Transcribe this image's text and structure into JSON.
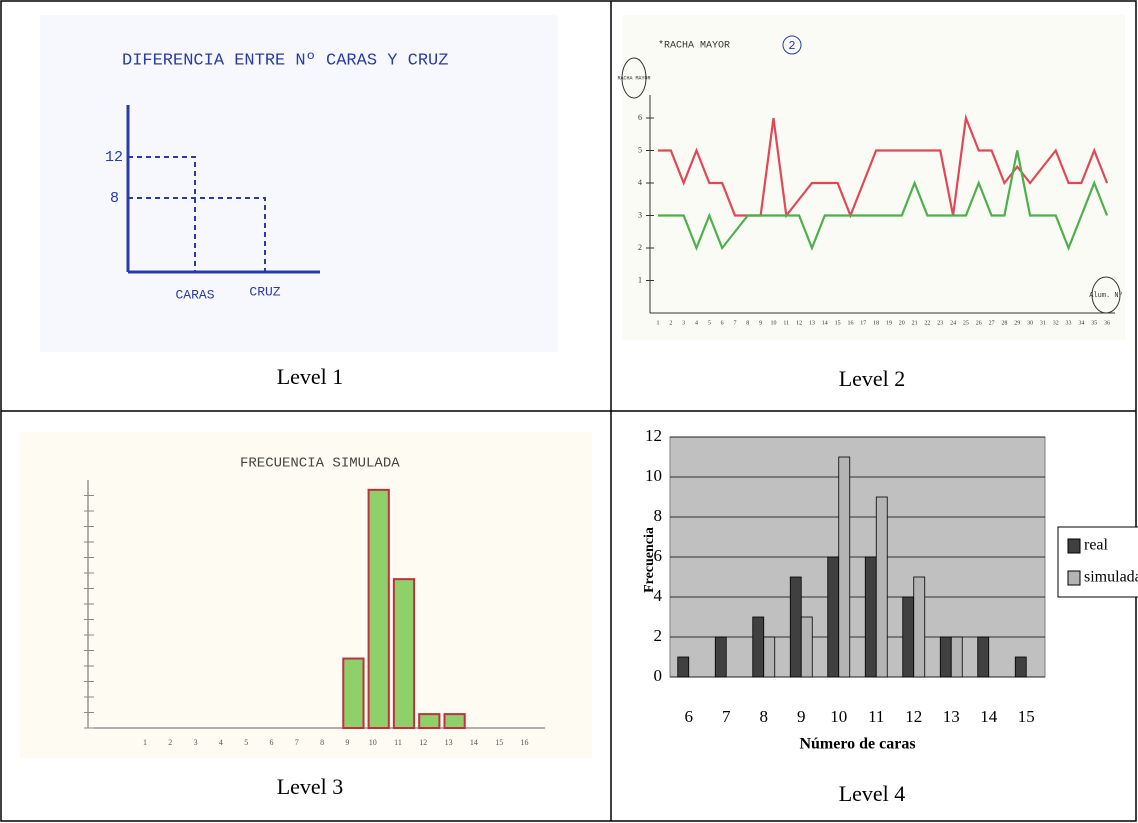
{
  "labels": [
    "Level 1",
    "Level 2",
    "Level 3",
    "Level 4"
  ],
  "sketch1": {
    "title": "DIFERENCIA ENTRE Nº CARAS Y CRUZ",
    "y_labels": [
      "12",
      "8"
    ],
    "x_labels": [
      "CARAS",
      "CRUZ"
    ]
  },
  "sketch2": {
    "type": "line",
    "title": "*RACHA MAYOR",
    "mark": "2",
    "y_label": "RACHA MAYOR",
    "x_label": "Alum. Nº",
    "x": [
      1,
      2,
      3,
      4,
      5,
      6,
      7,
      8,
      9,
      10,
      11,
      12,
      13,
      14,
      15,
      16,
      17,
      18,
      19,
      20,
      21,
      22,
      23,
      24,
      25,
      26,
      27,
      28,
      29,
      30,
      31,
      32,
      33,
      34,
      35,
      36
    ],
    "ylim": [
      0,
      6
    ],
    "yticks": [
      1,
      2,
      3,
      4,
      5,
      6
    ],
    "series": [
      {
        "color": "#e04858",
        "values": [
          5,
          5,
          4,
          5,
          4,
          4,
          3,
          3,
          3,
          6,
          3,
          3.5,
          4,
          4,
          4,
          3,
          4,
          5,
          5,
          5,
          5,
          5,
          5,
          3,
          6,
          5,
          5,
          4,
          4.5,
          4,
          4.5,
          5,
          4,
          4,
          5,
          4
        ]
      },
      {
        "color": "#4cb04c",
        "values": [
          3,
          3,
          3,
          2,
          3,
          2,
          2.5,
          3,
          3,
          3,
          3,
          3,
          2,
          3,
          3,
          3,
          3,
          3,
          3,
          3,
          4,
          3,
          3,
          3,
          3,
          4,
          3,
          3,
          5,
          3,
          3,
          3,
          2,
          3,
          4,
          3
        ]
      }
    ]
  },
  "sketch3": {
    "type": "bar",
    "title": "FRECUENCIA SIMULADA",
    "categories": [
      "1",
      "2",
      "3",
      "4",
      "5",
      "6",
      "7",
      "8",
      "9",
      "10",
      "11",
      "12",
      "13",
      "14",
      "15",
      "16"
    ],
    "values": [
      0,
      0,
      0,
      0,
      0,
      0,
      0,
      0,
      3.5,
      12,
      7.5,
      0.7,
      0.7,
      0,
      0,
      0
    ],
    "ylim": [
      0,
      13
    ],
    "color": "#8fd06a"
  },
  "chart_data": {
    "type": "bar",
    "x_label": "Número de caras",
    "y_label": "Frecuencia",
    "categories": [
      "6",
      "7",
      "8",
      "9",
      "10",
      "11",
      "12",
      "13",
      "14",
      "15"
    ],
    "series": [
      {
        "name": "real",
        "color": "#404040",
        "values": [
          1,
          2,
          3,
          5,
          6,
          6,
          4,
          2,
          2,
          1
        ]
      },
      {
        "name": "simulada",
        "color": "#b4b4b4",
        "values": [
          null,
          null,
          2,
          3,
          11,
          9,
          5,
          2,
          null,
          null
        ]
      }
    ],
    "ylim": [
      0,
      12
    ],
    "yticks": [
      0,
      2,
      4,
      6,
      8,
      10,
      12
    ],
    "grid": true
  }
}
